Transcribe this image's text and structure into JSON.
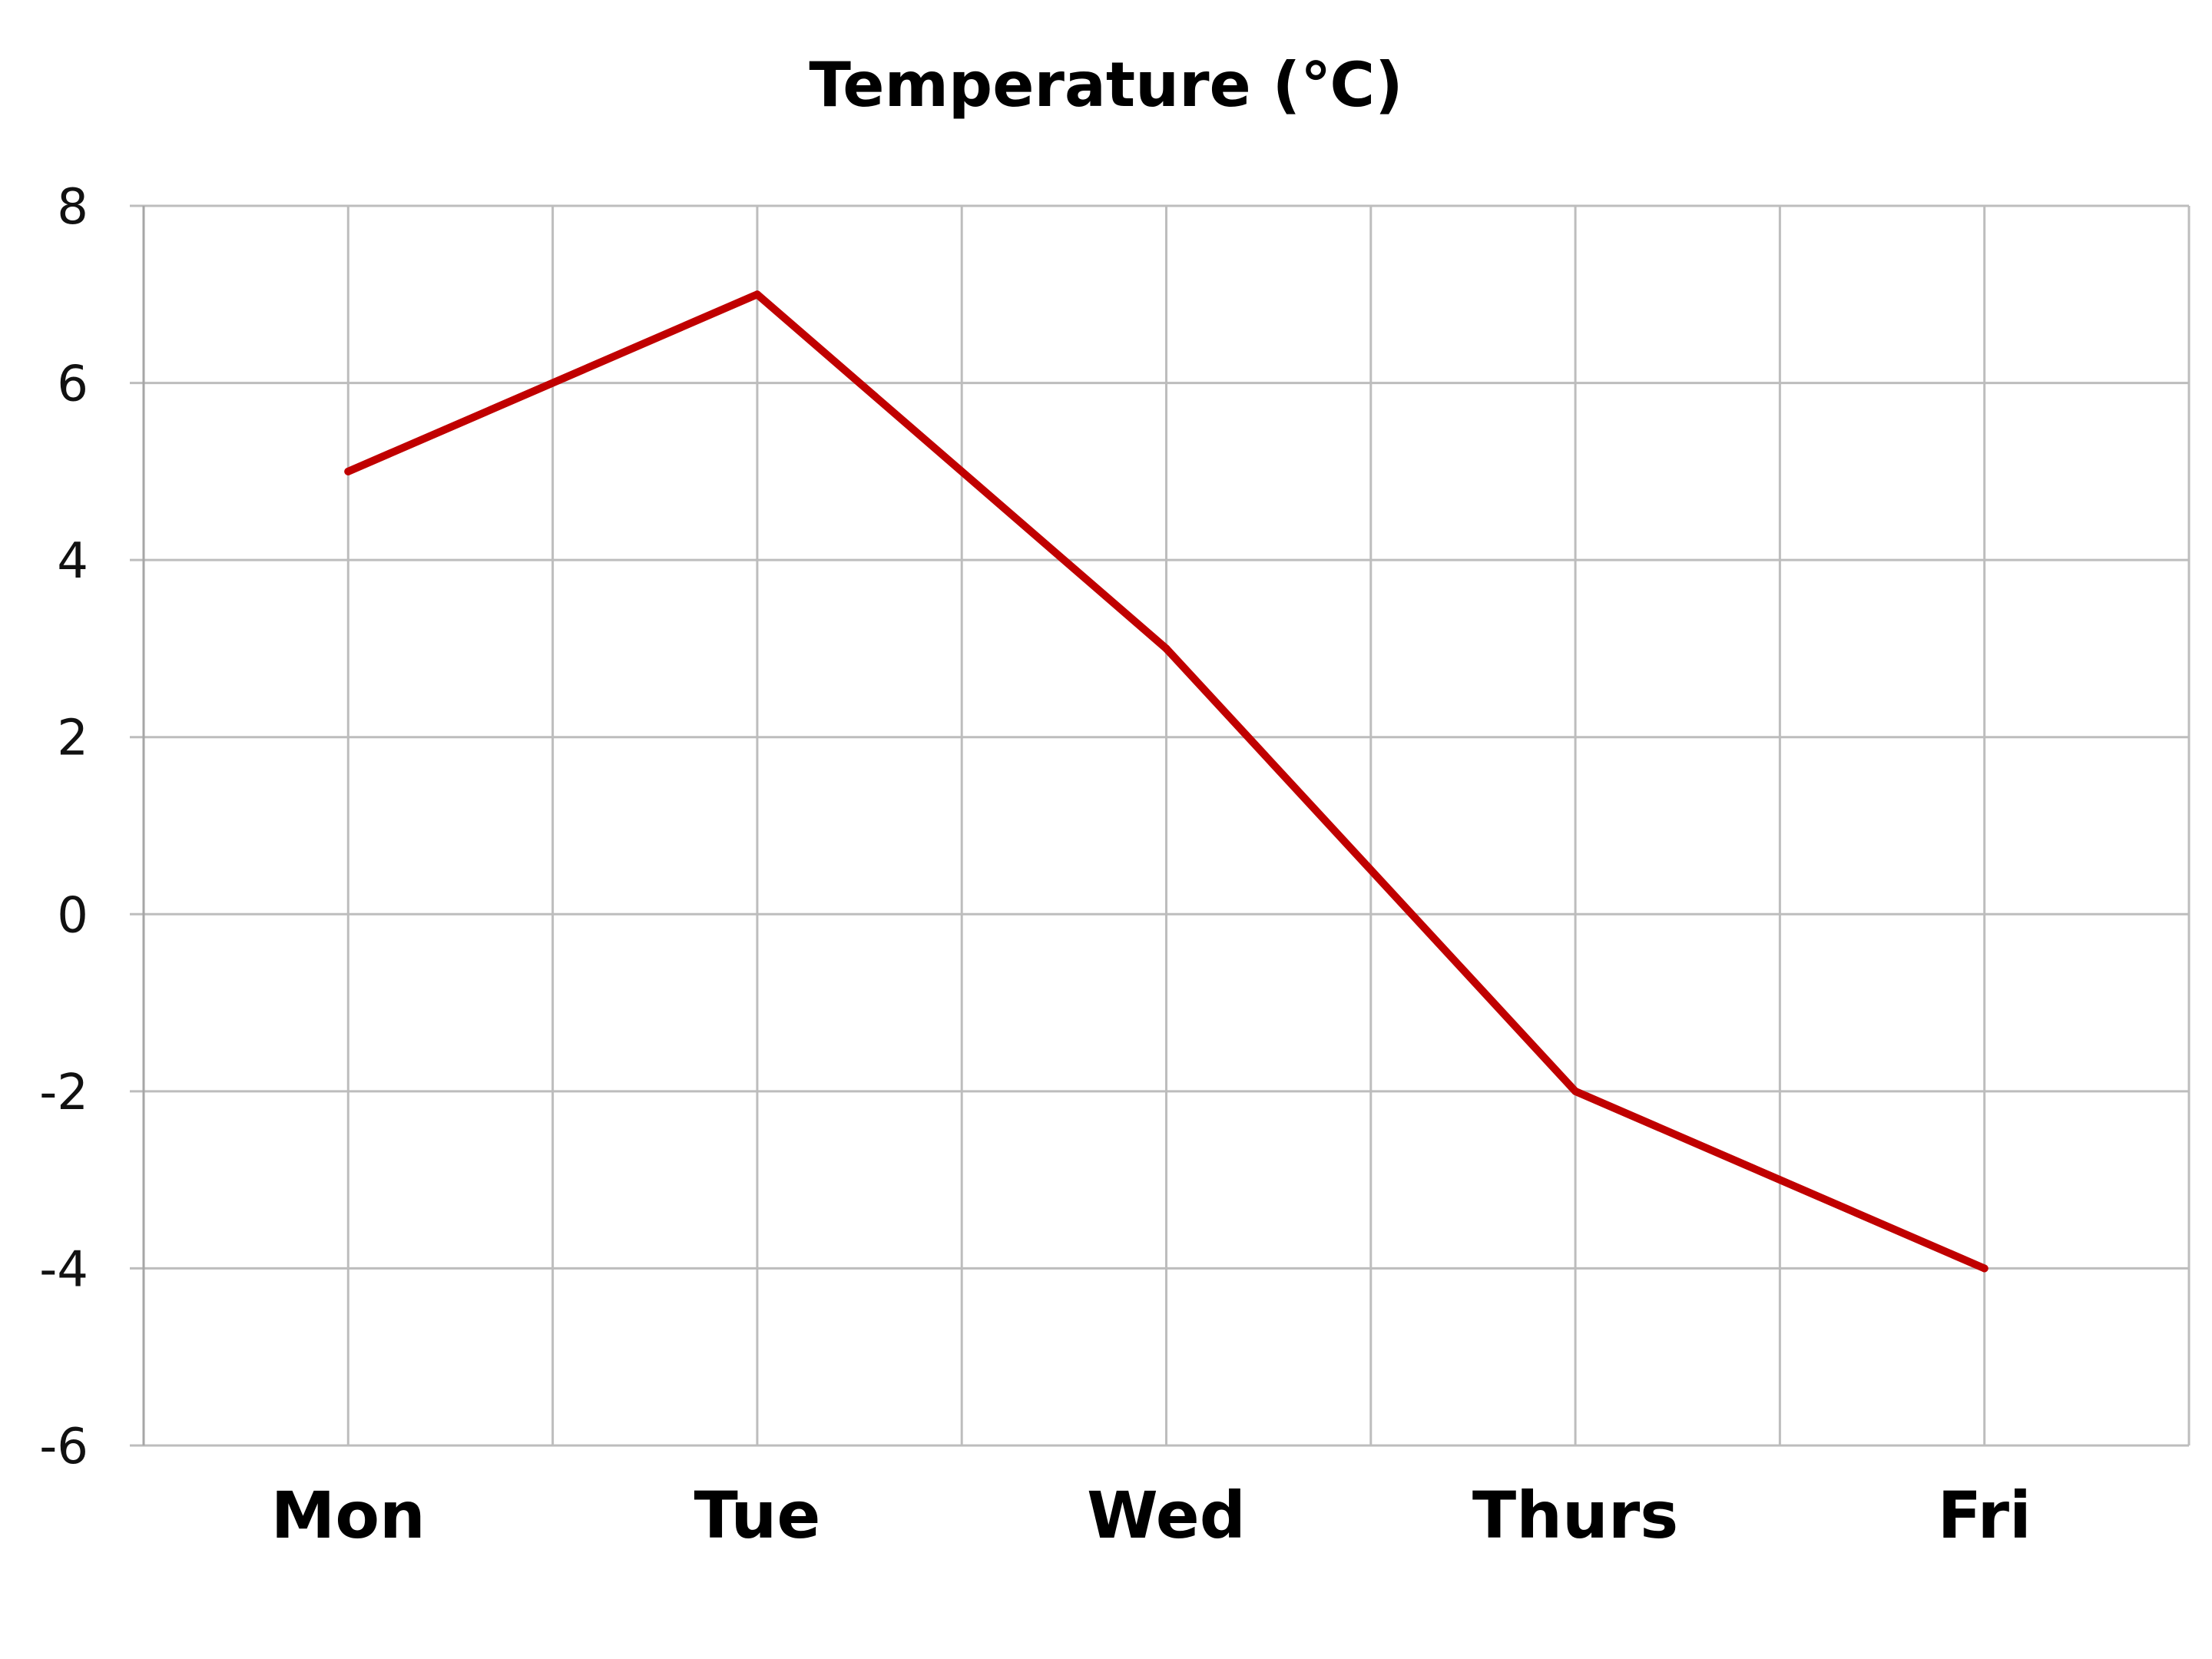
{
  "chart_data": {
    "type": "line",
    "title": "Temperature (℃)",
    "xlabel": "",
    "ylabel": "",
    "categories": [
      "Mon",
      "Tue",
      "Wed",
      "Thurs",
      "Fri"
    ],
    "series": [
      {
        "values": [
          5,
          7,
          3,
          -2,
          -4
        ],
        "color": "#c00000"
      }
    ],
    "ylim": [
      -6,
      8
    ],
    "yticks": [
      8,
      6,
      4,
      2,
      0,
      -2,
      -4,
      -6
    ],
    "grid": true,
    "legend": "none",
    "colors": {
      "grid": "#bdbdbd",
      "axis": "#a6a6a6"
    }
  }
}
